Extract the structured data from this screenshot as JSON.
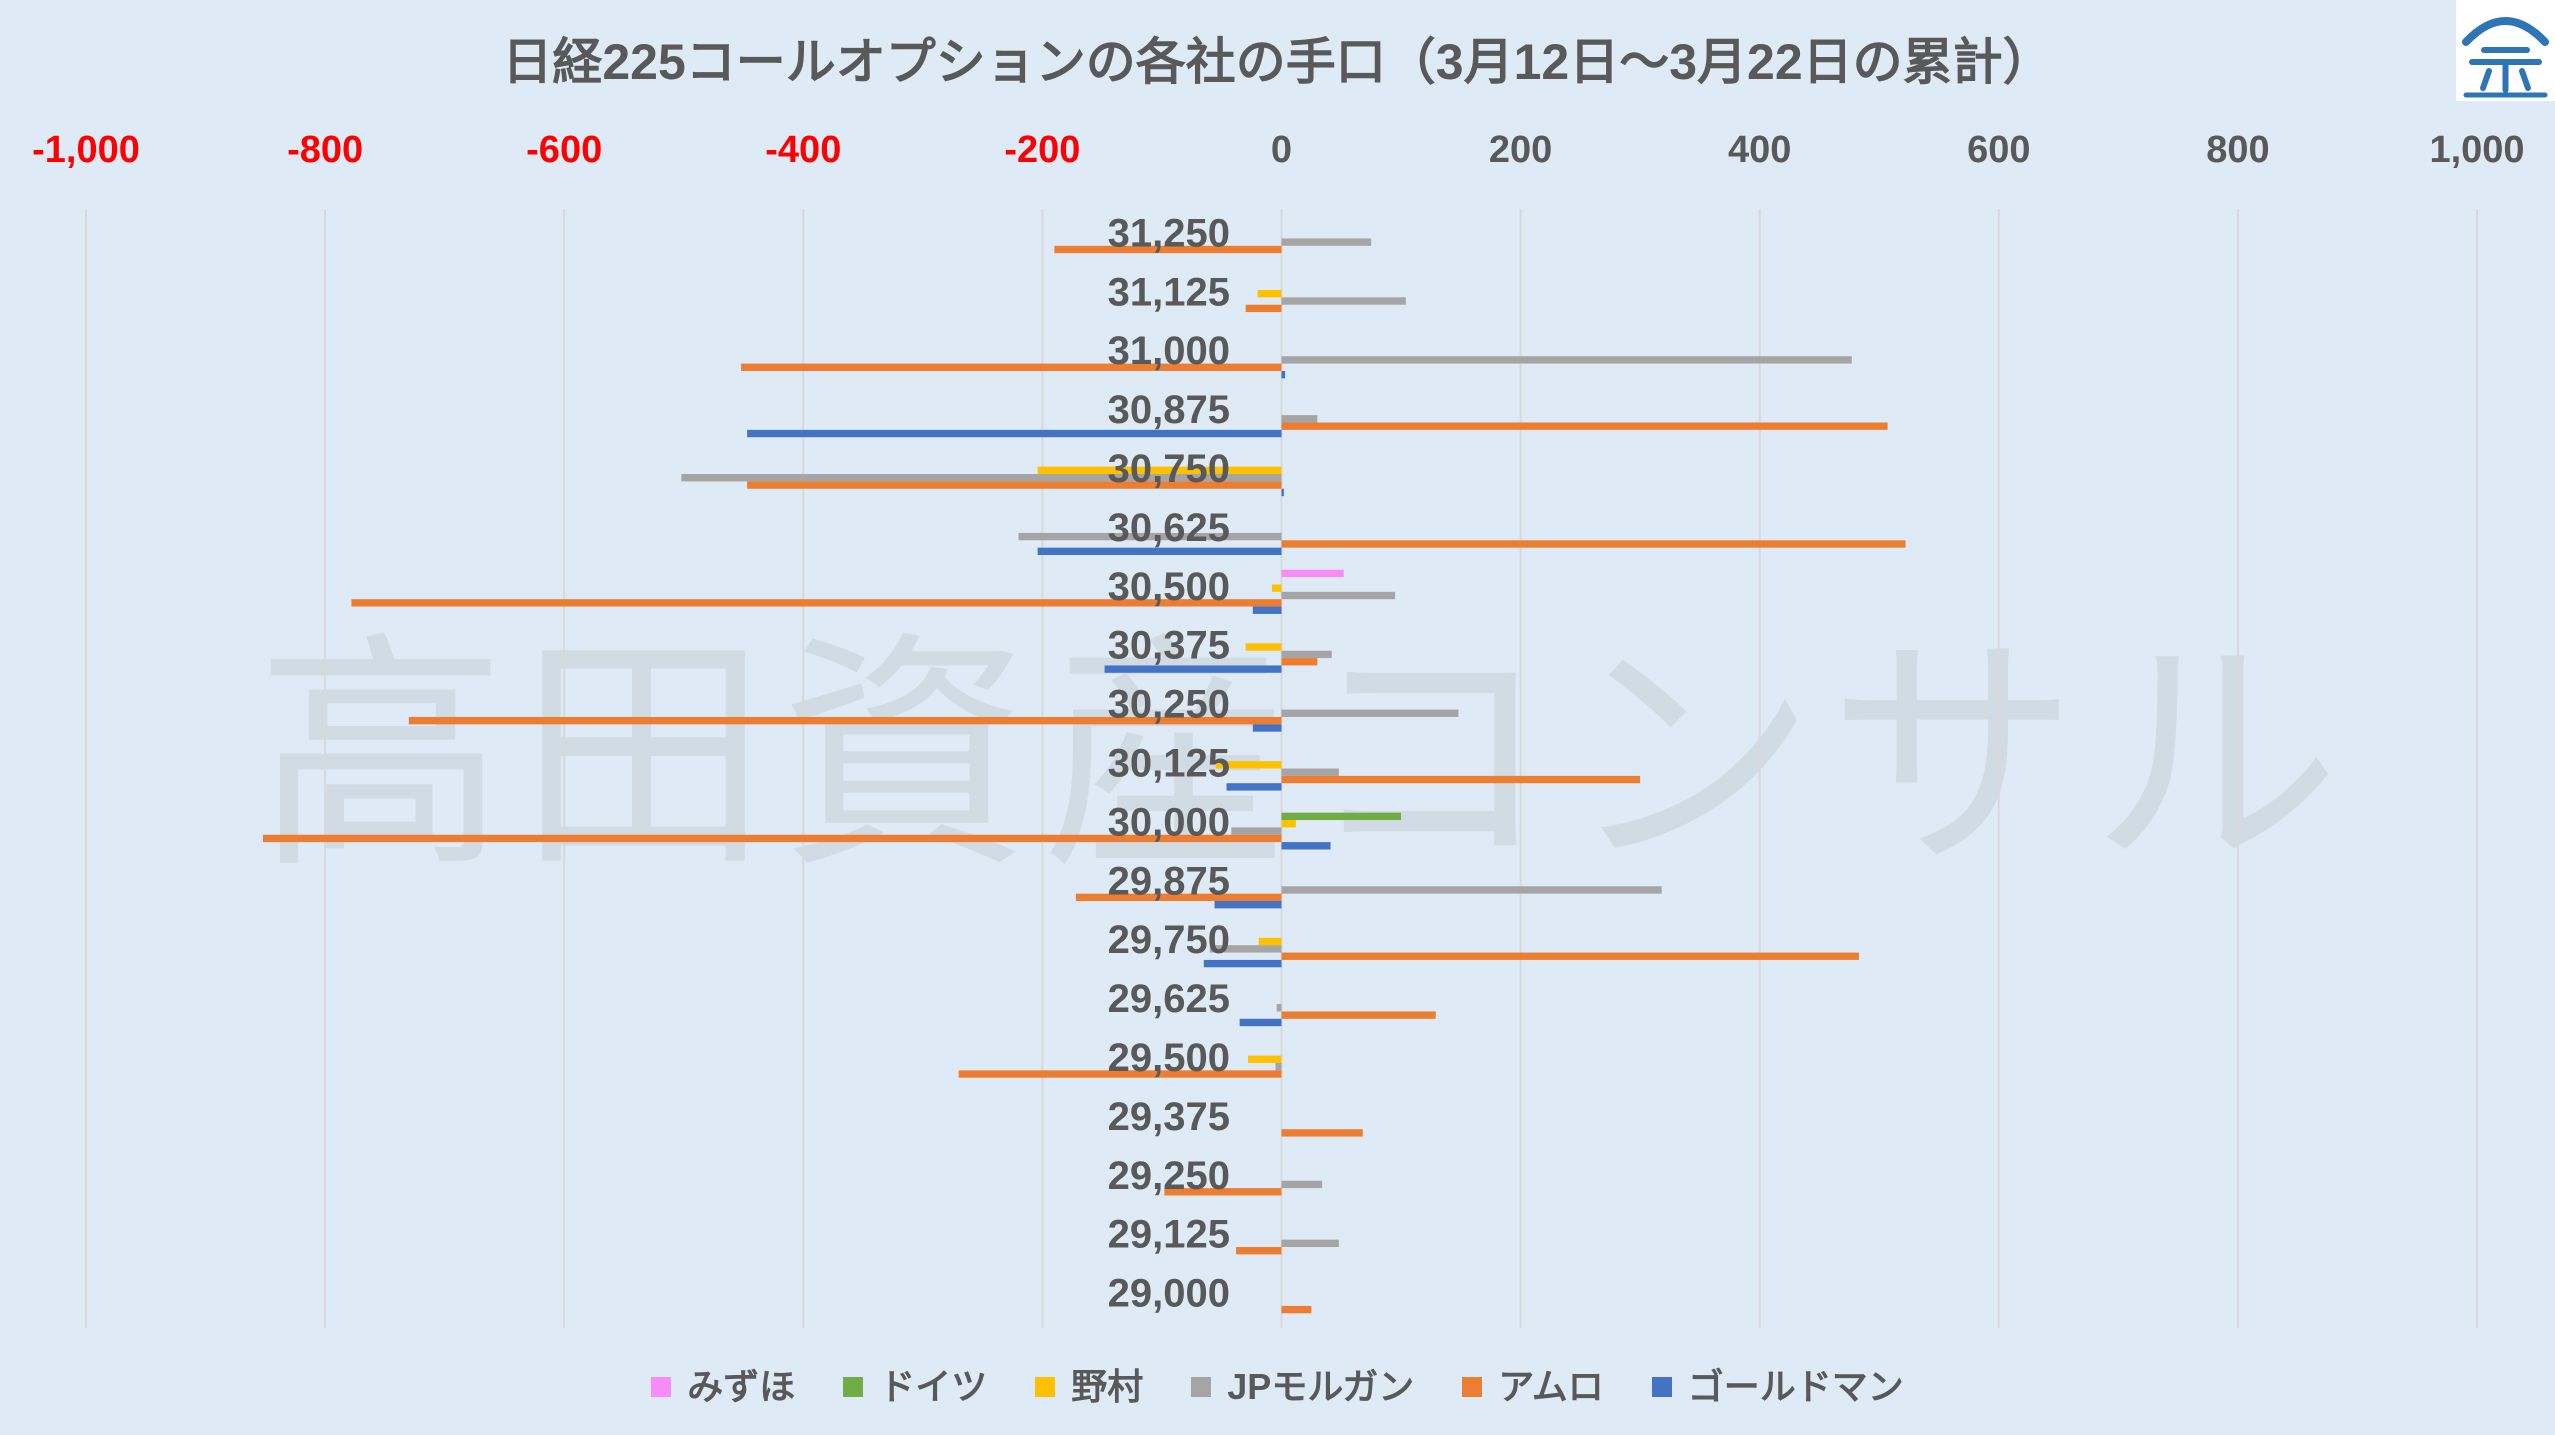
{
  "background_color": "#DEEBF7",
  "watermark": "高田資産コンサル",
  "logo": {
    "icon": "house-logo-icon",
    "color": "#2E75B6"
  },
  "chart_data": {
    "type": "bar",
    "orientation": "horizontal",
    "title": "日経225コールオプションの各社の手口（3月12日～3月22日の累計）",
    "xlabel": "",
    "ylabel": "",
    "xlim": [
      -1000,
      1000
    ],
    "xticks": [
      {
        "value": -1000,
        "label": "-1,000"
      },
      {
        "value": -800,
        "label": "-800"
      },
      {
        "value": -600,
        "label": "-600"
      },
      {
        "value": -400,
        "label": "-400"
      },
      {
        "value": -200,
        "label": "-200"
      },
      {
        "value": 0,
        "label": "0"
      },
      {
        "value": 200,
        "label": "200"
      },
      {
        "value": 400,
        "label": "400"
      },
      {
        "value": 600,
        "label": "600"
      },
      {
        "value": 800,
        "label": "800"
      },
      {
        "value": 1000,
        "label": "1,000"
      }
    ],
    "tick_color": "#595959",
    "negative_tick_color": "#FF0000",
    "grid": "vertical",
    "legend_position": "bottom",
    "categories": [
      "31,250",
      "31,125",
      "31,000",
      "30,875",
      "30,750",
      "30,625",
      "30,500",
      "30,375",
      "30,250",
      "30,125",
      "30,000",
      "29,875",
      "29,750",
      "29,625",
      "29,500",
      "29,375",
      "29,250",
      "29,125",
      "29,000"
    ],
    "series": [
      {
        "name": "みずほ",
        "color": "#F78CF7",
        "values": [
          0,
          0,
          0,
          0,
          0,
          0,
          52,
          0,
          0,
          0,
          0,
          0,
          0,
          0,
          0,
          0,
          0,
          0,
          0
        ]
      },
      {
        "name": "ドイツ",
        "color": "#70AD47",
        "values": [
          0,
          0,
          0,
          0,
          0,
          0,
          0,
          0,
          0,
          0,
          100,
          0,
          0,
          0,
          0,
          0,
          0,
          0,
          0
        ]
      },
      {
        "name": "野村",
        "color": "#FFC000",
        "values": [
          0,
          -20,
          0,
          0,
          -204,
          0,
          -8,
          -30,
          0,
          -55,
          12,
          0,
          -19,
          0,
          -28,
          0,
          0,
          0,
          0
        ]
      },
      {
        "name": "JPモルガン",
        "color": "#A5A5A5",
        "values": [
          75,
          104,
          477,
          30,
          -502,
          -220,
          95,
          42,
          148,
          48,
          -42,
          318,
          -60,
          -4,
          -5,
          0,
          34,
          48,
          0
        ]
      },
      {
        "name": "アムロ",
        "color": "#ED7D31",
        "values": [
          -190,
          -30,
          -452,
          507,
          -447,
          522,
          -778,
          30,
          -730,
          300,
          -852,
          -172,
          483,
          129,
          -270,
          68,
          -98,
          -38,
          25
        ]
      },
      {
        "name": "ゴールドマン",
        "color": "#4472C4",
        "values": [
          0,
          0,
          3,
          -447,
          2,
          -204,
          -24,
          -148,
          -24,
          -46,
          41,
          -56,
          -65,
          -35,
          0,
          0,
          0,
          0,
          0
        ]
      }
    ]
  }
}
